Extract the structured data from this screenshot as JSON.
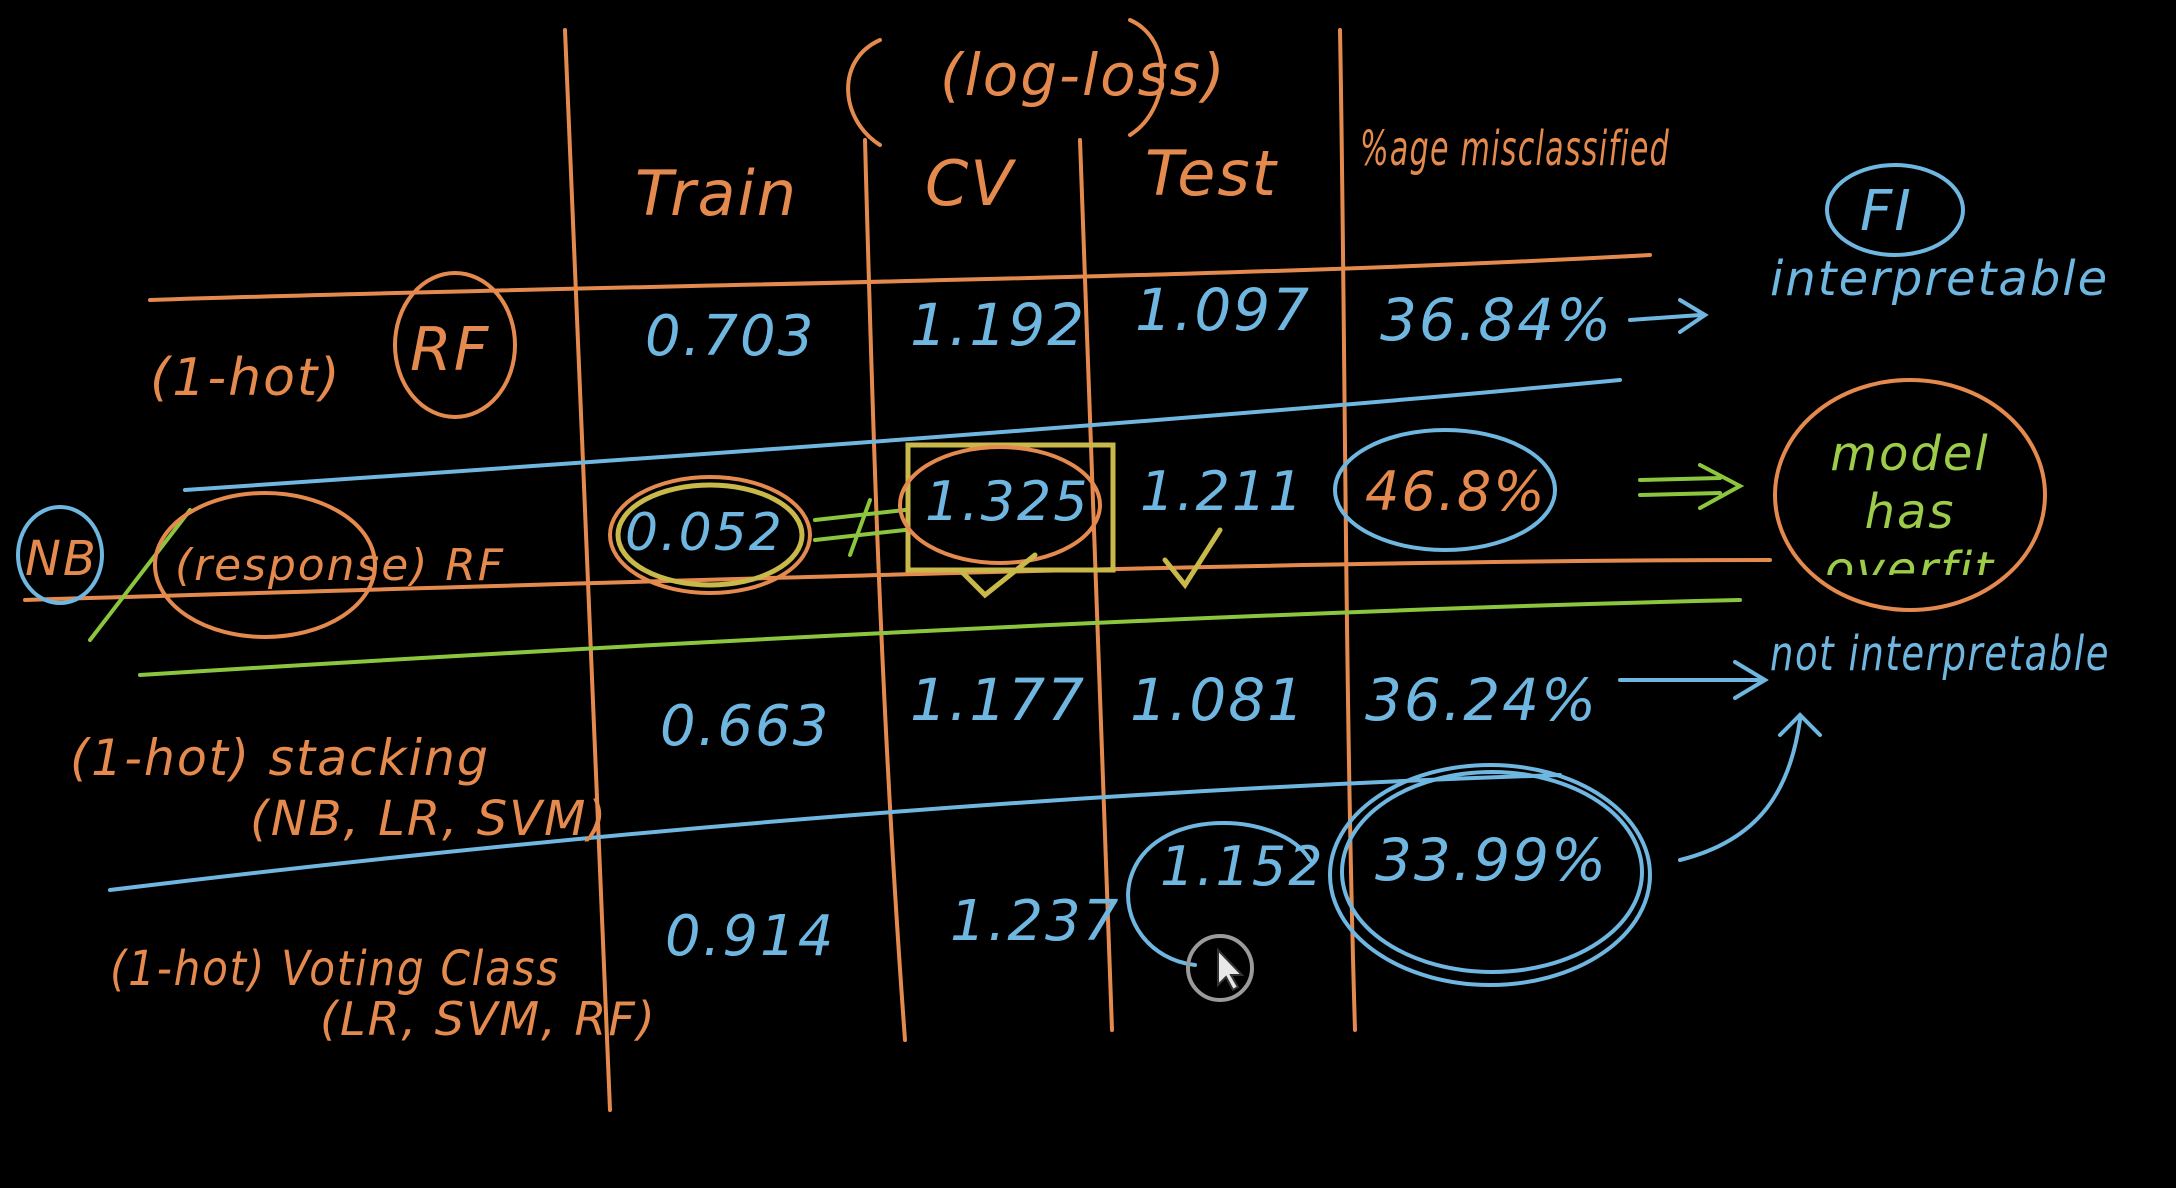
{
  "header": {
    "group_label": "(log-loss)",
    "columns": [
      "Train",
      "CV",
      "Test",
      "%age misclassified"
    ],
    "extra_note": "FI"
  },
  "rows": [
    {
      "label_a": "(1-hot)",
      "label_b": "RF",
      "train": "0.703",
      "cv": "1.192",
      "test": "1.097",
      "pct": "36.84%",
      "note": "interpretable"
    },
    {
      "label_a": "NB",
      "label_b": "(response) RF",
      "train": "0.052",
      "cv": "1.325",
      "test": "1.211",
      "pct": "46.8%",
      "note": "model has overfit"
    },
    {
      "label_a": "(1-hot) stacking",
      "label_b": "(NB, LR, SVM)",
      "train": "0.663",
      "cv": "1.177",
      "test": "1.081",
      "pct": "36.24%",
      "note": "not interpretable"
    },
    {
      "label_a": "(1-hot) Voting Class",
      "label_b": "(LR, SVM, RF)",
      "train": "0.914",
      "cv": "1.237",
      "test": "1.152",
      "pct": "33.99%",
      "note": ""
    }
  ],
  "colors": {
    "orange": "#e58a4e",
    "blue": "#6fb7e0",
    "green": "#8cc63f",
    "background": "#000000"
  },
  "icons": {
    "cursor": "mouse-cursor-icon"
  }
}
